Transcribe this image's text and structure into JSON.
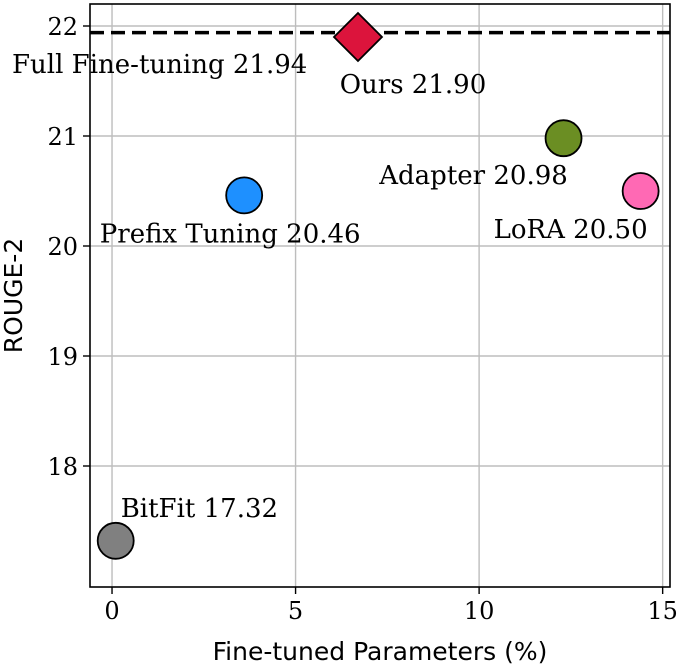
{
  "chart_data": {
    "type": "scatter",
    "title": "",
    "xlabel": "Fine-tuned Parameters (%)",
    "ylabel": "ROUGE-2",
    "xlim": [
      -0.6,
      15.2
    ],
    "ylim": [
      16.9,
      22.2
    ],
    "xticks": [
      0,
      5,
      10,
      15
    ],
    "yticks": [
      18,
      19,
      20,
      21,
      22
    ],
    "grid": true,
    "reference_line": {
      "label": "Full Fine-tuning 21.94",
      "y": 21.94,
      "style": "dashed",
      "color": "#000000"
    },
    "points": [
      {
        "name": "Ours",
        "label": "Ours 21.90",
        "x": 6.7,
        "y": 21.9,
        "marker": "diamond",
        "color": "#dc143c"
      },
      {
        "name": "Adapter",
        "label": "Adapter 20.98",
        "x": 12.3,
        "y": 20.98,
        "marker": "circle",
        "color": "#6b8e23"
      },
      {
        "name": "LoRA",
        "label": "LoRA 20.50",
        "x": 14.4,
        "y": 20.5,
        "marker": "circle",
        "color": "#ff69b4"
      },
      {
        "name": "Prefix Tuning",
        "label": "Prefix Tuning 20.46",
        "x": 3.6,
        "y": 20.46,
        "marker": "circle",
        "color": "#1e90ff"
      },
      {
        "name": "BitFit",
        "label": "BitFit 17.32",
        "x": 0.1,
        "y": 17.32,
        "marker": "circle",
        "color": "#808080"
      }
    ]
  }
}
